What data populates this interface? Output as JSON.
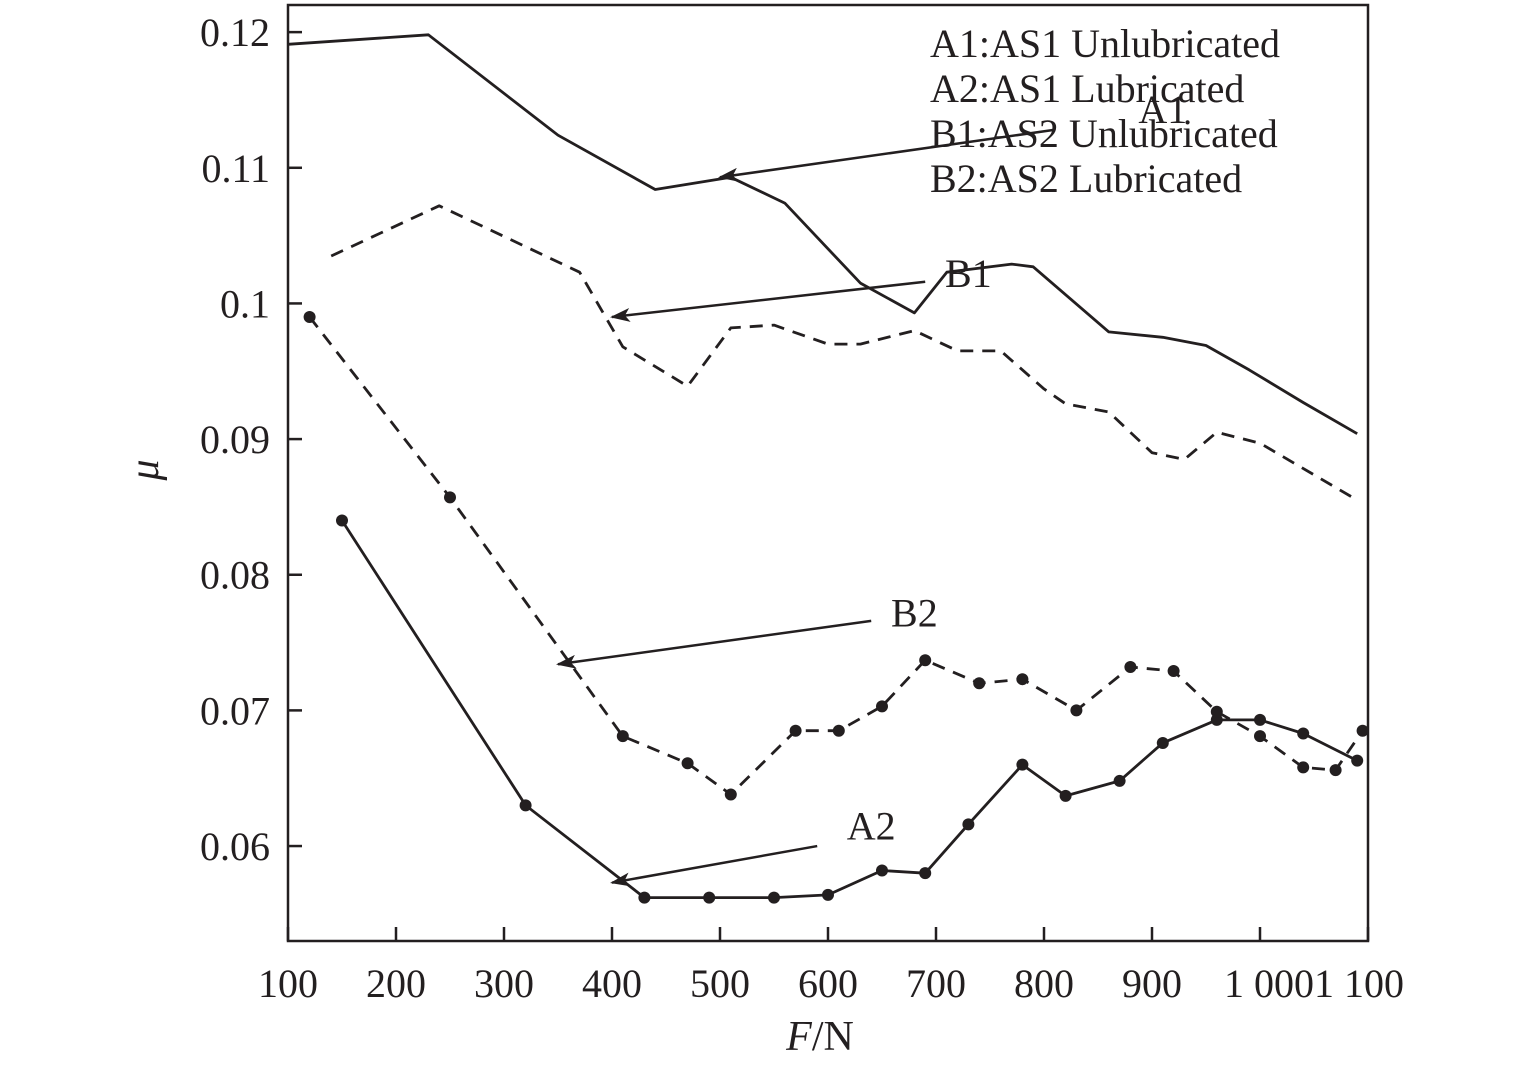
{
  "chart_data": {
    "type": "line",
    "title": "",
    "xlabel": "F/N",
    "xlabel_parts": {
      "var": "F",
      "unit": "/N"
    },
    "ylabel": "μ",
    "xlim": [
      100,
      1100
    ],
    "ylim": [
      0.053,
      0.122
    ],
    "grid": false,
    "legend_position": "top-right",
    "x_ticks": [
      100,
      200,
      300,
      400,
      500,
      600,
      700,
      800,
      900,
      1000,
      1100
    ],
    "x_tick_labels": [
      "100",
      "200",
      "300",
      "400",
      "500",
      "600",
      "700",
      "800",
      "900",
      "1 000",
      "1 100"
    ],
    "x_tick_label_run": "1 0001 100",
    "y_ticks": [
      0.06,
      0.07,
      0.08,
      0.09,
      0.1,
      0.11,
      0.12
    ],
    "y_tick_labels": [
      "0.06",
      "0.07",
      "0.08",
      "0.09",
      "0.1",
      "0.11",
      "0.12"
    ],
    "legend_entries": [
      "A1:AS1 Unlubricated",
      "A2:AS1 Lubricated",
      "B1:AS2 Unlubricated",
      "B2:AS2 Lubricated"
    ],
    "series": [
      {
        "id": "A1",
        "line_style": "solid",
        "markers": false,
        "x": [
          100,
          230,
          350,
          440,
          510,
          560,
          630,
          680,
          710,
          730,
          770,
          790,
          860,
          910,
          950,
          990,
          1040,
          1090
        ],
        "y": [
          0.1191,
          0.1198,
          0.1124,
          0.1084,
          0.1093,
          0.1074,
          0.1015,
          0.0993,
          0.1023,
          0.1025,
          0.1029,
          0.1027,
          0.0979,
          0.0975,
          0.0969,
          0.0951,
          0.0927,
          0.0904
        ]
      },
      {
        "id": "B1",
        "line_style": "dashed",
        "markers": false,
        "x": [
          140,
          240,
          370,
          410,
          470,
          510,
          550,
          600,
          630,
          680,
          720,
          760,
          800,
          820,
          860,
          900,
          930,
          960,
          1000,
          1090
        ],
        "y": [
          0.1035,
          0.1072,
          0.1023,
          0.0968,
          0.0939,
          0.0982,
          0.0984,
          0.097,
          0.097,
          0.098,
          0.0965,
          0.0965,
          0.0937,
          0.0926,
          0.092,
          0.089,
          0.0885,
          0.0905,
          0.0897,
          0.0855
        ]
      },
      {
        "id": "A2",
        "line_style": "solid",
        "markers": true,
        "x": [
          150,
          320,
          430,
          490,
          550,
          600,
          650,
          690,
          730,
          780,
          820,
          870,
          910,
          960,
          1000,
          1040,
          1090
        ],
        "y": [
          0.084,
          0.063,
          0.0562,
          0.0562,
          0.0562,
          0.0564,
          0.0582,
          0.058,
          0.0616,
          0.066,
          0.0637,
          0.0648,
          0.0676,
          0.0693,
          0.0693,
          0.0683,
          0.0663
        ]
      },
      {
        "id": "B2",
        "line_style": "dashed",
        "markers": true,
        "x": [
          120,
          250,
          410,
          470,
          510,
          570,
          610,
          650,
          690,
          740,
          780,
          830,
          880,
          920,
          960,
          1000,
          1040,
          1070,
          1095
        ],
        "y": [
          0.099,
          0.0857,
          0.0681,
          0.0661,
          0.0638,
          0.0685,
          0.0685,
          0.0703,
          0.0737,
          0.072,
          0.0723,
          0.07,
          0.0732,
          0.0729,
          0.0699,
          0.0681,
          0.0658,
          0.0656,
          0.0685
        ]
      }
    ],
    "annotations": [
      {
        "text": "A1",
        "text_at": [
          910,
          0.1133
        ],
        "arrow_from": [
          810,
          0.1128
        ],
        "arrow_to": [
          500,
          0.1093
        ]
      },
      {
        "text": "B1",
        "text_at": [
          730,
          0.1012
        ],
        "arrow_from": [
          690,
          0.1016
        ],
        "arrow_to": [
          400,
          0.099
        ]
      },
      {
        "text": "B2",
        "text_at": [
          680,
          0.0762
        ],
        "arrow_from": [
          640,
          0.0766
        ],
        "arrow_to": [
          350,
          0.0734
        ]
      },
      {
        "text": "A2",
        "text_at": [
          640,
          0.0605
        ],
        "arrow_from": [
          590,
          0.06
        ],
        "arrow_to": [
          400,
          0.0573
        ]
      }
    ]
  }
}
